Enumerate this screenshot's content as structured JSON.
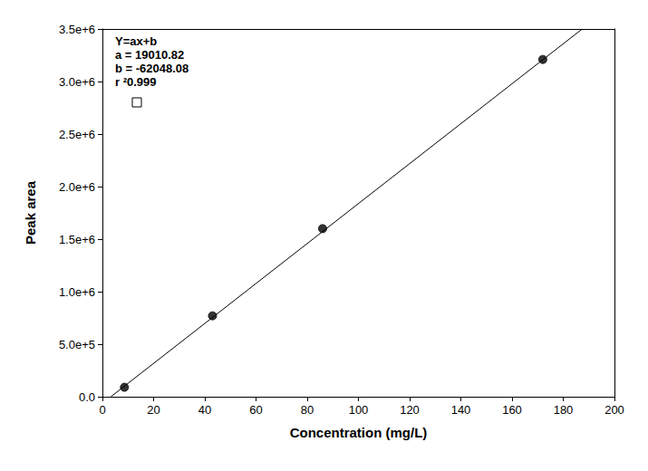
{
  "chart_data": {
    "type": "scatter",
    "xlabel": "Concentration (mg/L)",
    "ylabel": "Peak area",
    "annotations": [
      "Y=ax+b",
      "a = 19010.82",
      "b = -62048.08",
      "r ²0.999"
    ],
    "xlim": [
      0,
      200
    ],
    "xticks": [
      0,
      20,
      40,
      60,
      80,
      100,
      120,
      140,
      160,
      180,
      200
    ],
    "ylim": [
      0,
      3500000
    ],
    "yticks": [
      {
        "value": 0,
        "label": "0.0"
      },
      {
        "value": 500000,
        "label": "5.0e+5"
      },
      {
        "value": 1000000,
        "label": "1.0e+6"
      },
      {
        "value": 1500000,
        "label": "1.5e+6"
      },
      {
        "value": 2000000,
        "label": "2.0e+6"
      },
      {
        "value": 2500000,
        "label": "2.5e+6"
      },
      {
        "value": 3000000,
        "label": "3.0e+6"
      },
      {
        "value": 3500000,
        "label": "3.5e+6"
      }
    ],
    "grid": false,
    "series": [
      {
        "type": "scatter",
        "marker": "circle",
        "color": "#000000",
        "x": [
          8.6,
          43,
          86,
          172
        ],
        "values": [
          90000,
          770000,
          1600000,
          3210000
        ]
      },
      {
        "type": "line",
        "line_style": "solid",
        "color": "#000000",
        "x": [
          3.3,
          187.4
        ],
        "values": [
          0,
          3500000
        ]
      }
    ]
  }
}
